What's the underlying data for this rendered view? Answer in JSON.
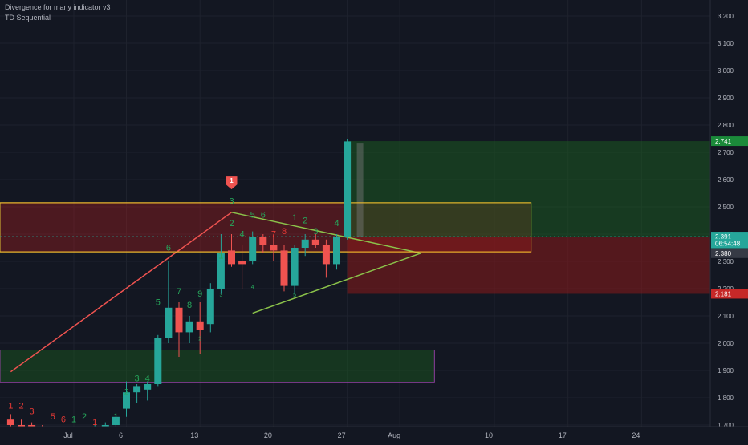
{
  "indicators": [
    "Divergence for many indicator v3",
    "TD Sequential"
  ],
  "colors": {
    "background": "#131722",
    "grid": "#1e222d",
    "up": "#26a69a",
    "down": "#ef5350",
    "td_up": "#26a65b",
    "td_down": "#e53935",
    "zone_red": "#b71c1c",
    "zone_green": "#1b5e20",
    "yellow": "#ffeb3b",
    "purple": "#ab47bc",
    "axis_text": "#b2b5be"
  },
  "chart_data": {
    "type": "candlestick",
    "yaxis": {
      "ticks": [
        "3.200",
        "3.100",
        "3.000",
        "2.900",
        "2.800",
        "2.700",
        "2.600",
        "2.500",
        "2.400",
        "2.300",
        "2.200",
        "2.100",
        "2.000",
        "1.900",
        "1.800",
        "1.700"
      ],
      "range": [
        1.69,
        3.24
      ]
    },
    "xaxis": {
      "ticks": [
        {
          "label": "Jul",
          "day": 0
        },
        {
          "label": "6",
          "day": 5
        },
        {
          "label": "13",
          "day": 12
        },
        {
          "label": "20",
          "day": 19
        },
        {
          "label": "27",
          "day": 26
        },
        {
          "label": "Aug",
          "day": 31
        },
        {
          "label": "10",
          "day": 40
        },
        {
          "label": "17",
          "day": 47
        },
        {
          "label": "24",
          "day": 54
        }
      ]
    },
    "candles": [
      {
        "day": -6,
        "o": 1.72,
        "h": 1.74,
        "l": 1.69,
        "c": 1.7
      },
      {
        "day": -5,
        "o": 1.7,
        "h": 1.72,
        "l": 1.68,
        "c": 1.69
      },
      {
        "day": -4,
        "o": 1.7,
        "h": 1.71,
        "l": 1.67,
        "c": 1.68
      },
      {
        "day": -3,
        "o": 1.68,
        "h": 1.7,
        "l": 1.66,
        "c": 1.67
      },
      {
        "day": -2,
        "o": 1.66,
        "h": 1.68,
        "l": 1.65,
        "c": 1.67
      },
      {
        "day": -1,
        "o": 1.67,
        "h": 1.69,
        "l": 1.65,
        "c": 1.68
      },
      {
        "day": 0,
        "o": 1.68,
        "h": 1.69,
        "l": 1.66,
        "c": 1.67
      },
      {
        "day": 1,
        "o": 1.67,
        "h": 1.69,
        "l": 1.66,
        "c": 1.68
      },
      {
        "day": 2,
        "o": 1.68,
        "h": 1.7,
        "l": 1.67,
        "c": 1.69
      },
      {
        "day": 3,
        "o": 1.69,
        "h": 1.71,
        "l": 1.68,
        "c": 1.7
      },
      {
        "day": 4,
        "o": 1.7,
        "h": 1.74,
        "l": 1.69,
        "c": 1.73
      },
      {
        "day": 5,
        "o": 1.76,
        "h": 1.86,
        "l": 1.73,
        "c": 1.82
      },
      {
        "day": 6,
        "o": 1.82,
        "h": 1.85,
        "l": 1.78,
        "c": 1.84
      },
      {
        "day": 7,
        "o": 1.83,
        "h": 1.86,
        "l": 1.79,
        "c": 1.85
      },
      {
        "day": 8,
        "o": 1.85,
        "h": 2.03,
        "l": 1.84,
        "c": 2.02
      },
      {
        "day": 9,
        "o": 2.02,
        "h": 2.3,
        "l": 2.0,
        "c": 2.13
      },
      {
        "day": 10,
        "o": 2.13,
        "h": 2.15,
        "l": 1.95,
        "c": 2.04
      },
      {
        "day": 11,
        "o": 2.04,
        "h": 2.1,
        "l": 2.0,
        "c": 2.08
      },
      {
        "day": 12,
        "o": 2.08,
        "h": 2.15,
        "l": 1.96,
        "c": 2.05
      },
      {
        "day": 13,
        "o": 2.07,
        "h": 2.22,
        "l": 2.04,
        "c": 2.2
      },
      {
        "day": 14,
        "o": 2.2,
        "h": 2.4,
        "l": 2.18,
        "c": 2.33
      },
      {
        "day": 15,
        "o": 2.34,
        "h": 2.4,
        "l": 2.28,
        "c": 2.29
      },
      {
        "day": 16,
        "o": 2.3,
        "h": 2.36,
        "l": 2.2,
        "c": 2.29
      },
      {
        "day": 17,
        "o": 2.3,
        "h": 2.41,
        "l": 2.29,
        "c": 2.39
      },
      {
        "day": 18,
        "o": 2.39,
        "h": 2.4,
        "l": 2.33,
        "c": 2.36
      },
      {
        "day": 19,
        "o": 2.36,
        "h": 2.4,
        "l": 2.3,
        "c": 2.34
      },
      {
        "day": 20,
        "o": 2.34,
        "h": 2.36,
        "l": 2.19,
        "c": 2.21
      },
      {
        "day": 21,
        "o": 2.21,
        "h": 2.36,
        "l": 2.18,
        "c": 2.35
      },
      {
        "day": 22,
        "o": 2.35,
        "h": 2.4,
        "l": 2.32,
        "c": 2.38
      },
      {
        "day": 23,
        "o": 2.38,
        "h": 2.4,
        "l": 2.35,
        "c": 2.36
      },
      {
        "day": 24,
        "o": 2.36,
        "h": 2.38,
        "l": 2.24,
        "c": 2.29
      },
      {
        "day": 25,
        "o": 2.29,
        "h": 2.4,
        "l": 2.27,
        "c": 2.39
      },
      {
        "day": 26,
        "o": 2.39,
        "h": 2.75,
        "l": 2.38,
        "c": 2.74
      }
    ],
    "td_labels": [
      {
        "day": -6,
        "text": "1",
        "color": "down",
        "price": 1.76
      },
      {
        "day": -5,
        "text": "2",
        "color": "down",
        "price": 1.76
      },
      {
        "day": -4,
        "text": "3",
        "color": "down",
        "price": 1.74
      },
      {
        "day": -2,
        "text": "5",
        "color": "down",
        "price": 1.72
      },
      {
        "day": -1,
        "text": "6",
        "color": "down",
        "price": 1.71
      },
      {
        "day": 0,
        "text": "1",
        "color": "up",
        "price": 1.71
      },
      {
        "day": 1,
        "text": "2",
        "color": "up",
        "price": 1.72
      },
      {
        "day": 2,
        "text": "1",
        "color": "down",
        "price": 1.7
      },
      {
        "day": 4,
        "text": "1",
        "color": "up",
        "price": 1.72
      },
      {
        "day": 5,
        "text": "2",
        "color": "up",
        "price": 1.81
      },
      {
        "day": 6,
        "text": "3",
        "color": "up",
        "price": 1.86
      },
      {
        "day": 7,
        "text": "4",
        "color": "up",
        "price": 1.86
      },
      {
        "day": 8,
        "text": "5",
        "color": "up",
        "price": 2.14
      },
      {
        "day": 9,
        "text": "6",
        "color": "up",
        "price": 2.34
      },
      {
        "day": 10,
        "text": "7",
        "color": "up",
        "price": 2.18
      },
      {
        "day": 11,
        "text": "8",
        "color": "up",
        "price": 2.13
      },
      {
        "day": 12,
        "text": "9",
        "color": "up",
        "price": 2.17
      },
      {
        "day": 14,
        "text": "1",
        "color": "up",
        "price": 2.31
      },
      {
        "day": 15,
        "text": "2",
        "color": "up",
        "price": 2.43
      },
      {
        "day": 15,
        "text": "3",
        "color": "up",
        "price": 2.51
      },
      {
        "day": 16,
        "text": "4",
        "color": "up",
        "price": 2.39
      },
      {
        "day": 17,
        "text": "5",
        "color": "up",
        "price": 2.46
      },
      {
        "day": 18,
        "text": "6",
        "color": "up",
        "price": 2.46
      },
      {
        "day": 19,
        "text": "7",
        "color": "down",
        "price": 2.39
      },
      {
        "day": 20,
        "text": "8",
        "color": "down",
        "price": 2.4
      },
      {
        "day": 21,
        "text": "1",
        "color": "up",
        "price": 2.45
      },
      {
        "day": 22,
        "text": "2",
        "color": "up",
        "price": 2.44
      },
      {
        "day": 23,
        "text": "3",
        "color": "up",
        "price": 2.4
      },
      {
        "day": 25,
        "text": "4",
        "color": "up",
        "price": 2.43
      }
    ],
    "td_small": [
      {
        "day": 14,
        "text": "3",
        "price": 2.17
      },
      {
        "day": 12,
        "text": "2",
        "price": 2.01
      },
      {
        "day": 17,
        "text": "4",
        "price": 2.2
      },
      {
        "day": 21,
        "text": "5",
        "price": 2.17
      }
    ],
    "sell_signal": {
      "day": 15,
      "price": 2.585,
      "text": "1"
    },
    "current_price_labels": [
      {
        "text": "2.741",
        "price": 2.741,
        "color": "#1b8a3a"
      },
      {
        "text": "2.391",
        "price": 2.391,
        "color": "#26a69a"
      },
      {
        "text": "06:54:48",
        "price": 2.366,
        "color": "#26a69a"
      },
      {
        "text": "2.380",
        "price": 2.33,
        "color": "#363a45"
      },
      {
        "text": "2.181",
        "price": 2.181,
        "color": "#c62828"
      }
    ],
    "zones": [
      {
        "type": "red",
        "day_start": -9,
        "day_end": 43.5,
        "p_top": 2.515,
        "p_bottom": 2.335
      },
      {
        "type": "green",
        "day_start": -9,
        "day_end": 34.3,
        "p_top": 1.975,
        "p_bottom": 1.855
      },
      {
        "type": "position_profit",
        "day_start": 26,
        "day_end": 63,
        "p_top": 2.741,
        "p_bottom": 2.391
      },
      {
        "type": "position_loss",
        "day_start": 26,
        "day_end": 63,
        "p_top": 2.391,
        "p_bottom": 2.181
      }
    ],
    "lines": [
      {
        "kind": "trend",
        "color": "#ef5350",
        "points": [
          [
            -6,
            1.895
          ],
          [
            15,
            2.48
          ]
        ]
      },
      {
        "kind": "triangle_top",
        "color": "#8bc34a",
        "points": [
          [
            15,
            2.48
          ],
          [
            33,
            2.33
          ]
        ]
      },
      {
        "kind": "triangle_bottom",
        "color": "#8bc34a",
        "points": [
          [
            17,
            2.11
          ],
          [
            33,
            2.33
          ]
        ]
      },
      {
        "kind": "yellow_top",
        "color": "#fbc02d",
        "points": [
          [
            -9,
            2.515
          ],
          [
            43.5,
            2.515
          ]
        ]
      },
      {
        "kind": "yellow_bottom",
        "color": "#fbc02d",
        "points": [
          [
            -9,
            2.335
          ],
          [
            43.5,
            2.335
          ]
        ]
      }
    ]
  }
}
